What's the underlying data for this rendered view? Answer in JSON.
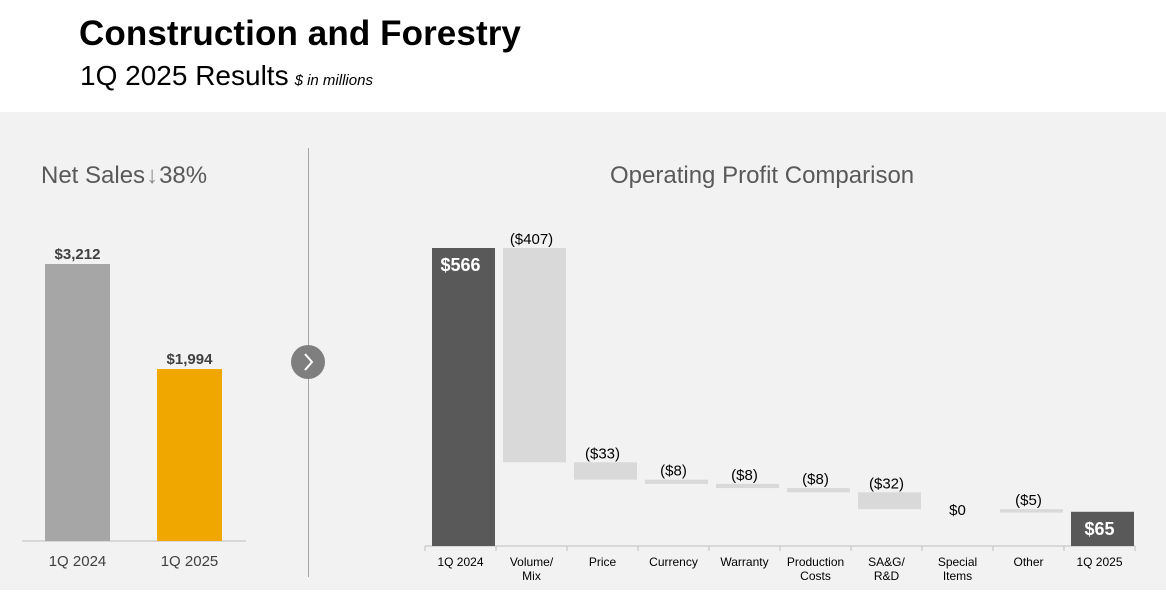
{
  "header": {
    "title": "Construction and Forestry",
    "subtitle": "1Q 2025 Results",
    "units_note": "$ in millions"
  },
  "net_sales": {
    "title_prefix": "Net Sales",
    "arrow": "↓",
    "change": "38%"
  },
  "operating_profit": {
    "title": "Operating Profit Comparison"
  },
  "colors": {
    "bar_2024": "#a6a6a6",
    "bar_2025": "#f0a800",
    "total_bar": "#595959",
    "delta_bar": "#d9d9d9",
    "panel_bg": "#f2f2f2"
  },
  "chart_data": [
    {
      "type": "bar",
      "title": "Net Sales ↓ 38%",
      "categories": [
        "1Q 2024",
        "1Q 2025"
      ],
      "values": [
        3212,
        1994
      ],
      "value_labels": [
        "$3,212",
        "$1,994"
      ],
      "ylim": [
        0,
        3600
      ]
    },
    {
      "type": "waterfall",
      "title": "Operating Profit Comparison",
      "categories": [
        "1Q 2024",
        "Volume/\nMix",
        "Price",
        "Currency",
        "Warranty",
        "Production\nCosts",
        "SA&G/\nR&D",
        "Special\nItems",
        "Other",
        "1Q 2025"
      ],
      "values": [
        566,
        -407,
        -33,
        -8,
        -8,
        -8,
        -32,
        0,
        -5,
        65
      ],
      "kinds": [
        "total",
        "delta",
        "delta",
        "delta",
        "delta",
        "delta",
        "delta",
        "delta",
        "delta",
        "total"
      ],
      "value_labels": [
        "$566",
        "($407)",
        "($33)",
        "($8)",
        "($8)",
        "($8)",
        "($32)",
        "$0",
        "($5)",
        "$65"
      ]
    }
  ]
}
